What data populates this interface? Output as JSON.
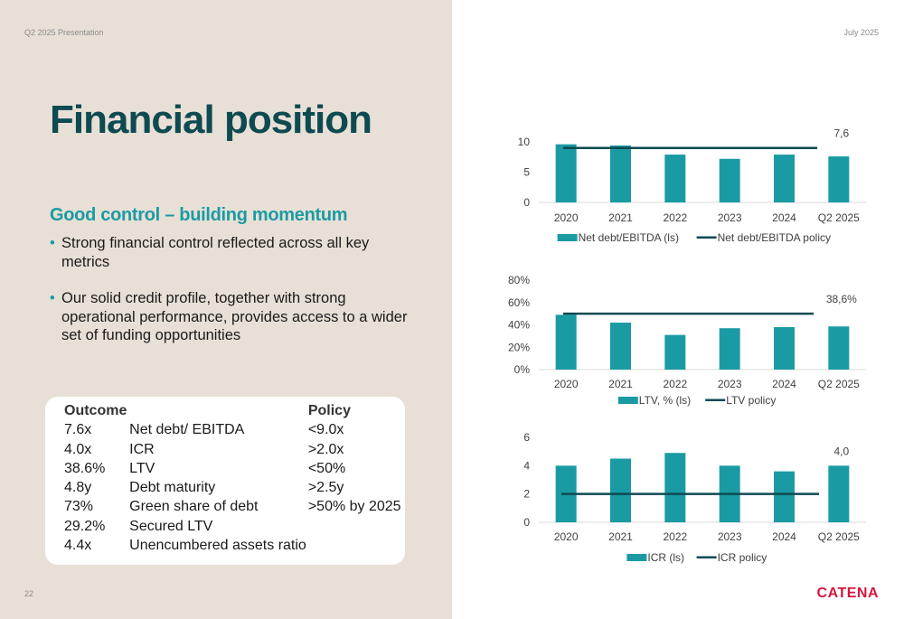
{
  "header": {
    "left": "Q2 2025 Presentation",
    "right": "July 2025"
  },
  "title": "Financial position",
  "subtitle": "Good control – building momentum",
  "bullets": [
    "Strong financial control reflected across all key metrics",
    "Our solid credit profile, together with strong operational performance, provides access to a wider set of funding opportunities"
  ],
  "metrics": {
    "headers": {
      "outcome": "Outcome",
      "policy": "Policy"
    },
    "rows": [
      {
        "outcome": "7.6x",
        "metric": "Net debt/ EBITDA",
        "policy": "<9.0x"
      },
      {
        "outcome": "4.0x",
        "metric": "ICR",
        "policy": ">2.0x"
      },
      {
        "outcome": "38.6%",
        "metric": "LTV",
        "policy": "<50%"
      },
      {
        "outcome": "4.8y",
        "metric": "Debt maturity",
        "policy": ">2.5y"
      },
      {
        "outcome": "73%",
        "metric": "Green share of debt",
        "policy": ">50% by 2025"
      },
      {
        "outcome": "29.2%",
        "metric": "Secured LTV",
        "policy": ""
      },
      {
        "outcome": "4.4x",
        "metric": "Unencumbered assets ratio",
        "policy": ""
      }
    ]
  },
  "page_number": "22",
  "logo": "CATENA",
  "colors": {
    "bar": "#1a9ba4",
    "policy_line": "#0e4a52",
    "title": "#0e4a52",
    "subtitle": "#1a9ba4",
    "logo": "#d6163c"
  },
  "chart_data": [
    {
      "type": "bar",
      "categories": [
        "2020",
        "2021",
        "2022",
        "2023",
        "2024",
        "Q2 2025"
      ],
      "series": [
        {
          "name": "Net debt/EBITDA (ls)",
          "type": "bar",
          "values": [
            9.6,
            9.4,
            7.9,
            7.2,
            7.9,
            7.6
          ]
        },
        {
          "name": "Net debt/EBITDA policy",
          "type": "line",
          "values": [
            9.0,
            9.0,
            9.0,
            9.0,
            9.0,
            9.0
          ]
        }
      ],
      "yticks": [
        "0",
        "5",
        "10"
      ],
      "ylim": [
        0,
        10
      ],
      "annotation": {
        "text": "7,6",
        "category": "Q2 2025"
      },
      "legend": "bottom",
      "grid": false
    },
    {
      "type": "bar",
      "categories": [
        "2020",
        "2021",
        "2022",
        "2023",
        "2024",
        "Q2 2025"
      ],
      "series": [
        {
          "name": "LTV, % (ls)",
          "type": "bar",
          "values": [
            49,
            42,
            31,
            37,
            38,
            38.6
          ]
        },
        {
          "name": "LTV policy",
          "type": "line",
          "values": [
            50,
            50,
            50,
            50,
            50,
            50
          ]
        }
      ],
      "yticks": [
        "0%",
        "20%",
        "40%",
        "60%",
        "80%"
      ],
      "ylim": [
        0,
        80
      ],
      "annotation": {
        "text": "38,6%",
        "category": "Q2 2025"
      },
      "legend": "bottom",
      "grid": false
    },
    {
      "type": "bar",
      "categories": [
        "2020",
        "2021",
        "2022",
        "2023",
        "2024",
        "Q2 2025"
      ],
      "series": [
        {
          "name": "ICR (ls)",
          "type": "bar",
          "values": [
            4.0,
            4.5,
            4.9,
            4.0,
            3.6,
            4.0
          ]
        },
        {
          "name": "ICR policy",
          "type": "line",
          "values": [
            2.0,
            2.0,
            2.0,
            2.0,
            2.0,
            2.0
          ]
        }
      ],
      "yticks": [
        "0",
        "2",
        "4",
        "6"
      ],
      "ylim": [
        0,
        6
      ],
      "annotation": {
        "text": "4,0",
        "category": "Q2 2025"
      },
      "legend": "bottom",
      "grid": false
    }
  ]
}
